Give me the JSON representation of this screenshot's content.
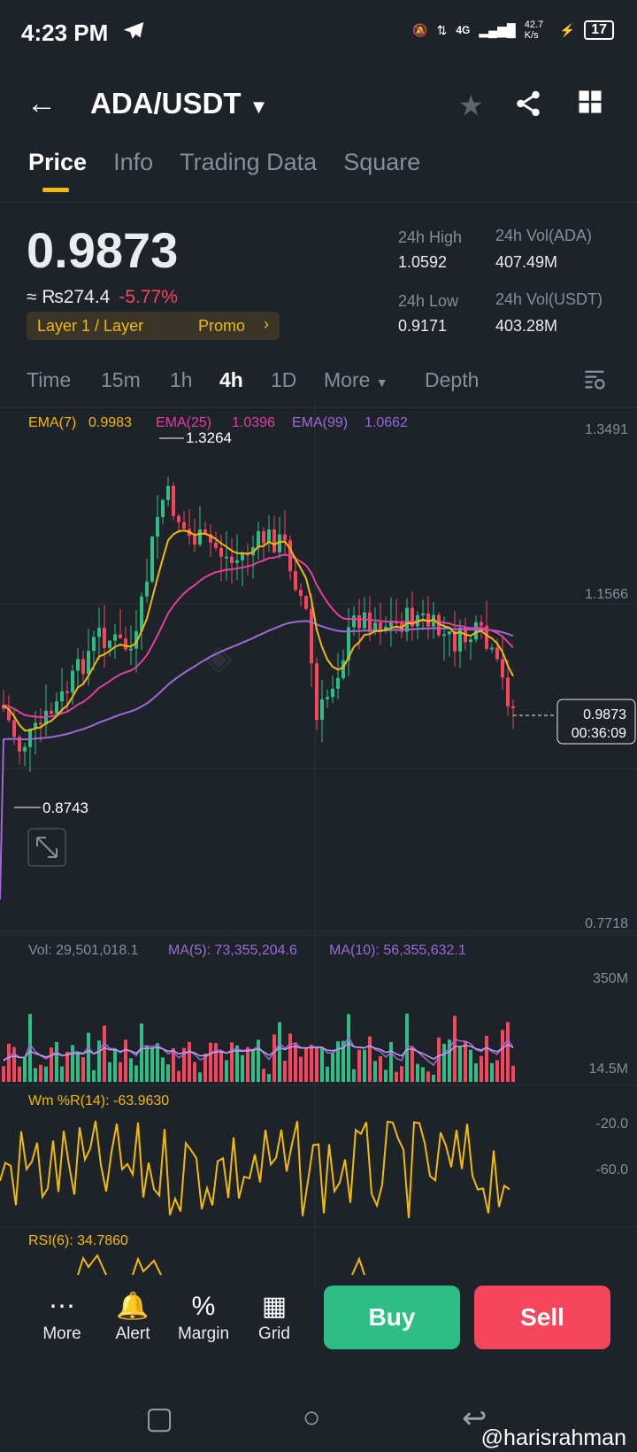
{
  "status_bar": {
    "time": "4:23 PM",
    "net": "4G",
    "speed": "42.7 K/s",
    "battery": "17"
  },
  "header": {
    "pair": "ADA/USDT"
  },
  "tabs": [
    "Price",
    "Info",
    "Trading Data",
    "Square"
  ],
  "price": {
    "last": "0.9873",
    "fiat": "≈ ₨274.4",
    "change": "-5.77%",
    "tag": "Layer 1 / Layer",
    "promo": "Promo"
  },
  "stats": {
    "high_label": "24h High",
    "high": "1.0592",
    "low_label": "24h Low",
    "low": "0.9171",
    "vol_ada_label": "24h Vol(ADA)",
    "vol_ada": "407.49M",
    "vol_usdt_label": "24h Vol(USDT)",
    "vol_usdt": "403.28M"
  },
  "intervals": [
    "Time",
    "15m",
    "1h",
    "4h",
    "1D",
    "More",
    "Depth"
  ],
  "active_interval": "4h",
  "chart_data": [
    {
      "type": "candlestick",
      "ema": [
        {
          "name": "EMA(7)",
          "value": "0.9983",
          "color": "#f0b90b"
        },
        {
          "name": "EMA(25)",
          "value": "1.0396",
          "color": "#e040a0"
        },
        {
          "name": "EMA(99)",
          "value": "1.0662",
          "color": "#9b6bd8"
        }
      ],
      "y_ticks": [
        "1.3491",
        "1.1566",
        "0.7718"
      ],
      "ylim": [
        0.7718,
        1.3491
      ],
      "high_mark": "1.3264",
      "low_mark": "0.8743",
      "last_price": "0.9873",
      "countdown": "00:36:09"
    },
    {
      "type": "bar",
      "vol": "Vol: 29,501,018.1",
      "ma5": "MA(5): 73,355,204.6",
      "ma10": "MA(10): 56,355,632.1",
      "y_ticks": [
        "350M",
        "14.5M"
      ]
    },
    {
      "type": "line",
      "label": "Wm %R(14): -63.9630",
      "y_ticks": [
        "-20.0",
        "-60.0"
      ]
    },
    {
      "type": "line",
      "label": "RSI(6): 34.7860"
    }
  ],
  "bottom_bar": {
    "items": [
      {
        "label": "More",
        "icon": "more-icon"
      },
      {
        "label": "Alert",
        "icon": "bell-icon"
      },
      {
        "label": "Margin",
        "icon": "margin-icon"
      },
      {
        "label": "Grid",
        "icon": "grid-icon"
      }
    ],
    "buy": "Buy",
    "sell": "Sell"
  },
  "watermark": "@harisrahman",
  "colors": {
    "up": "#2ebd85",
    "down": "#f6465d",
    "accent": "#f0b90b"
  }
}
